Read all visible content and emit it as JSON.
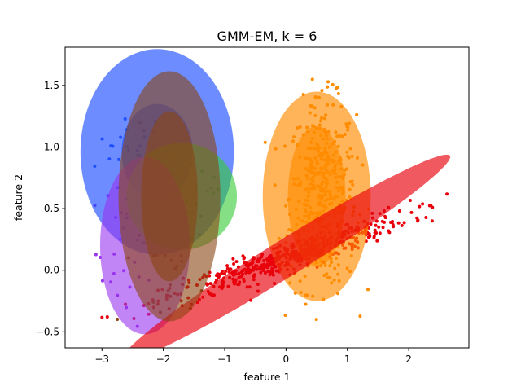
{
  "chart_data": {
    "type": "scatter",
    "title": "GMM-EM, k = 6",
    "xlabel": "feature 1",
    "ylabel": "feature 2",
    "xlim": [
      -3.6,
      2.98
    ],
    "ylim": [
      -0.63,
      1.81
    ],
    "xticks": [
      -3,
      -2,
      -1,
      0,
      1,
      2
    ],
    "yticks": [
      -0.5,
      0.0,
      0.5,
      1.0,
      1.5
    ],
    "grid": false,
    "components": [
      {
        "color": "#1f4fff",
        "mean": [
          -2.1,
          0.96
        ],
        "widths": [
          2.5,
          1.16
        ],
        "heights": [
          1.67,
          0.78
        ],
        "angle_deg": 0,
        "alpha": 0.65
      },
      {
        "color": "#33cc33",
        "mean": [
          -1.7,
          0.6
        ],
        "widths": [
          1.8
        ],
        "heights": [
          0.87
        ],
        "angle_deg": 0,
        "alpha": 0.6
      },
      {
        "color": "#9933ee",
        "mean": [
          -2.3,
          0.2
        ],
        "widths": [
          1.46
        ],
        "heights": [
          1.44
        ],
        "angle_deg": 0,
        "alpha": 0.6
      },
      {
        "color": "#ff8c00",
        "mean": [
          0.5,
          0.6
        ],
        "widths": [
          1.76,
          0.94
        ],
        "heights": [
          1.7,
          1.14
        ],
        "angle_deg": 0,
        "alpha": 0.65
      },
      {
        "color": "#e8000b",
        "mean": [
          0.0,
          0.1
        ],
        "widths": [
          5.6
        ],
        "heights": [
          0.33
        ],
        "angle_deg": 17.1,
        "alpha": 0.65
      },
      {
        "color": "#8b4513",
        "mean": [
          -1.9,
          0.6
        ],
        "widths": [
          1.66,
          0.92
        ],
        "heights": [
          2.03,
          1.38
        ],
        "angle_deg": 0,
        "alpha": 0.6
      }
    ],
    "clusters": [
      {
        "color": "#1f4fff",
        "n": 25,
        "mean": [
          -2.5,
          0.95
        ],
        "sd": [
          0.3,
          0.2
        ],
        "rho": 0
      },
      {
        "color": "#33cc33",
        "n": 10,
        "mean": [
          -1.3,
          0.6
        ],
        "sd": [
          0.2,
          0.1
        ],
        "rho": 0
      },
      {
        "color": "#9933ee",
        "n": 25,
        "mean": [
          -2.6,
          0.15
        ],
        "sd": [
          0.25,
          0.3
        ],
        "rho": 0
      },
      {
        "color": "#ff8c00",
        "n": 450,
        "mean": [
          0.6,
          0.6
        ],
        "sd": [
          0.27,
          0.38
        ],
        "rho": 0
      },
      {
        "color": "#e8000b",
        "n": 500,
        "mean": [
          0.0,
          0.1
        ],
        "sd": [
          1.0,
          0.18
        ],
        "rho": 0.94
      },
      {
        "color": "#8b4513",
        "n": 60,
        "mean": [
          -1.9,
          0.3
        ],
        "sd": [
          0.3,
          0.4
        ],
        "rho": 0
      }
    ]
  }
}
